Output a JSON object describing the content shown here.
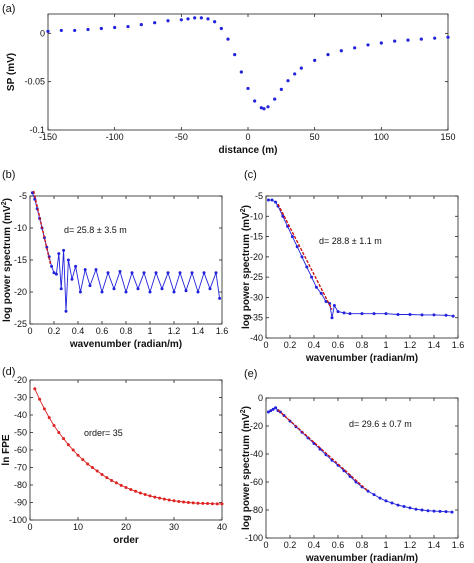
{
  "figure": {
    "background": "#ffffff",
    "point_color": "#2222dd",
    "fit_color": "#cc1111",
    "red_color": "#dd2222"
  },
  "chart_data": [
    {
      "id": "a",
      "panel_label": "(a)",
      "type": "scatter",
      "xlabel": "distance (m)",
      "ylabel": "SP (mV)",
      "xlim": [
        -150,
        150
      ],
      "ylim": [
        -0.1,
        0.02
      ],
      "xticks": [
        -150,
        -100,
        -50,
        0,
        50,
        100,
        150
      ],
      "yticks": [
        -0.1,
        -0.05,
        0
      ],
      "ytick_labels": [
        "-0.1",
        "-0.05",
        "0"
      ],
      "xtick_labels": [
        "-150",
        "-100",
        "-50",
        "0",
        "50",
        "100",
        "150"
      ],
      "series": [
        {
          "color": "#2222dd",
          "marker": "dot",
          "x": [
            -150,
            -140,
            -130,
            -120,
            -110,
            -100,
            -90,
            -80,
            -70,
            -60,
            -50,
            -45,
            -40,
            -35,
            -30,
            -25,
            -20,
            -15,
            -10,
            -5,
            0,
            5,
            10,
            12,
            15,
            20,
            25,
            30,
            35,
            40,
            50,
            60,
            70,
            80,
            90,
            100,
            110,
            120,
            130,
            140,
            150
          ],
          "y": [
            0.002,
            0.003,
            0.003,
            0.004,
            0.005,
            0.006,
            0.007,
            0.009,
            0.011,
            0.013,
            0.014,
            0.015,
            0.016,
            0.016,
            0.015,
            0.012,
            0.005,
            -0.006,
            -0.022,
            -0.04,
            -0.057,
            -0.07,
            -0.077,
            -0.078,
            -0.076,
            -0.068,
            -0.058,
            -0.049,
            -0.042,
            -0.036,
            -0.028,
            -0.022,
            -0.018,
            -0.015,
            -0.012,
            -0.01,
            -0.008,
            -0.007,
            -0.006,
            -0.005,
            -0.004
          ]
        }
      ]
    },
    {
      "id": "b",
      "panel_label": "(b)",
      "type": "line",
      "xlabel": "wavenumber (radian/m)",
      "ylabel": "log power spectrum (mV2)",
      "xlim": [
        0,
        1.6
      ],
      "ylim": [
        -25,
        -5
      ],
      "xticks": [
        0,
        0.2,
        0.4,
        0.6,
        0.8,
        1,
        1.2,
        1.4,
        1.6
      ],
      "xtick_labels": [
        "0",
        "0.2",
        "0.4",
        "0.6",
        "0.8",
        "1",
        "1.2",
        "1.4",
        "1.6"
      ],
      "yticks": [
        -25,
        -20,
        -15,
        -10,
        -5
      ],
      "ytick_labels": [
        "-25",
        "-20",
        "-15",
        "-10",
        "-5"
      ],
      "annotation": "d= 25.8 ± 3.5 m",
      "series": [
        {
          "color": "#2222dd",
          "marker": "dot",
          "x": [
            0.02,
            0.04,
            0.06,
            0.08,
            0.1,
            0.12,
            0.14,
            0.16,
            0.18,
            0.2,
            0.22,
            0.24,
            0.26,
            0.28,
            0.3,
            0.32,
            0.35,
            0.38,
            0.42,
            0.46,
            0.5,
            0.55,
            0.6,
            0.65,
            0.7,
            0.75,
            0.8,
            0.85,
            0.9,
            0.95,
            1.0,
            1.05,
            1.1,
            1.15,
            1.2,
            1.25,
            1.3,
            1.35,
            1.4,
            1.45,
            1.5,
            1.55,
            1.58
          ],
          "y": [
            -4.5,
            -5.5,
            -7,
            -8.5,
            -10,
            -11.5,
            -13,
            -14.5,
            -16,
            -17,
            -17.2,
            -14,
            -19.5,
            -13.5,
            -23,
            -15,
            -18,
            -16,
            -20,
            -16.5,
            -19,
            -16.5,
            -20,
            -17,
            -19.5,
            -16.8,
            -20,
            -17,
            -19.5,
            -17,
            -20,
            -17,
            -19.5,
            -17,
            -20,
            -17,
            -19.8,
            -17,
            -20,
            -17,
            -19.5,
            -17,
            -21
          ]
        },
        {
          "color": "#cc1111",
          "marker": "none",
          "x": [
            0.03,
            0.17
          ],
          "y": [
            -4.2,
            -15.6
          ]
        }
      ]
    },
    {
      "id": "c",
      "panel_label": "(c)",
      "type": "line",
      "xlabel": "wavenumber (radian/m)",
      "ylabel": "log power spectrum (mV2)",
      "xlim": [
        0,
        1.6
      ],
      "ylim": [
        -40,
        -5
      ],
      "xticks": [
        0,
        0.2,
        0.4,
        0.6,
        0.8,
        1,
        1.2,
        1.4,
        1.6
      ],
      "xtick_labels": [
        "0",
        "0.2",
        "0.4",
        "0.6",
        "0.8",
        "1",
        "1.2",
        "1.4",
        "1.6"
      ],
      "yticks": [
        -40,
        -35,
        -30,
        -25,
        -20,
        -15,
        -10,
        -5
      ],
      "ytick_labels": [
        "-40",
        "-35",
        "-30",
        "-25",
        "-20",
        "-15",
        "-10",
        "-5"
      ],
      "annotation": "d= 28.8 ± 1.1 m",
      "series": [
        {
          "color": "#2222dd",
          "marker": "dot",
          "x": [
            0.02,
            0.05,
            0.08,
            0.1,
            0.14,
            0.18,
            0.22,
            0.26,
            0.3,
            0.34,
            0.38,
            0.42,
            0.46,
            0.5,
            0.53,
            0.55,
            0.57,
            0.6,
            0.65,
            0.7,
            0.8,
            0.9,
            1.0,
            1.1,
            1.2,
            1.3,
            1.4,
            1.5,
            1.56
          ],
          "y": [
            -6,
            -6,
            -6.5,
            -7.5,
            -10,
            -12.5,
            -15,
            -17.5,
            -20,
            -22.5,
            -25,
            -27.5,
            -29,
            -31,
            -31.5,
            -35,
            -32,
            -33.5,
            -33.8,
            -34,
            -34,
            -34,
            -34,
            -34.2,
            -34.2,
            -34.3,
            -34.3,
            -34.4,
            -34.6
          ]
        },
        {
          "color": "#cc1111",
          "marker": "none",
          "x": [
            0.1,
            0.55
          ],
          "y": [
            -7,
            -33
          ]
        }
      ]
    },
    {
      "id": "d",
      "panel_label": "(d)",
      "type": "line",
      "xlabel": "order",
      "ylabel": "ln FPE",
      "xlim": [
        0,
        40
      ],
      "ylim": [
        -100,
        -20
      ],
      "xticks": [
        0,
        10,
        20,
        30,
        40
      ],
      "xtick_labels": [
        "0",
        "10",
        "20",
        "30",
        "40"
      ],
      "yticks": [
        -100,
        -90,
        -80,
        -70,
        -60,
        -50,
        -40,
        -30,
        -20
      ],
      "ytick_labels": [
        "-100",
        "-90",
        "-80",
        "-70",
        "-60",
        "-50",
        "-40",
        "-30",
        "-20"
      ],
      "annotation": "order= 35",
      "series": [
        {
          "color": "#dd2222",
          "marker": "dot",
          "x": [
            1,
            2,
            3,
            4,
            5,
            6,
            7,
            8,
            9,
            10,
            11,
            12,
            13,
            14,
            15,
            16,
            17,
            18,
            19,
            20,
            21,
            22,
            23,
            24,
            25,
            26,
            27,
            28,
            29,
            30,
            31,
            32,
            33,
            34,
            35,
            36,
            37,
            38,
            39,
            40
          ],
          "y": [
            -25,
            -31,
            -36.5,
            -41.5,
            -46,
            -50,
            -53.5,
            -57,
            -60,
            -63,
            -65.5,
            -68,
            -70,
            -72,
            -74,
            -75.8,
            -77.4,
            -78.8,
            -80.2,
            -81.4,
            -82.6,
            -83.6,
            -84.6,
            -85.4,
            -86.2,
            -86.9,
            -87.5,
            -88.1,
            -88.6,
            -89,
            -89.4,
            -89.7,
            -90,
            -90.2,
            -90.4,
            -90.5,
            -90.6,
            -90.7,
            -90.8,
            -90.8
          ]
        }
      ]
    },
    {
      "id": "e",
      "panel_label": "(e)",
      "type": "line",
      "xlabel": "wavenumber (radian/m)",
      "ylabel": "log power spectrum (mV2)",
      "xlim": [
        0,
        1.6
      ],
      "ylim": [
        -100,
        0
      ],
      "xticks": [
        0,
        0.2,
        0.4,
        0.6,
        0.8,
        1,
        1.2,
        1.4,
        1.6
      ],
      "xtick_labels": [
        "0",
        "0.2",
        "0.4",
        "0.6",
        "0.8",
        "1",
        "1.2",
        "1.4",
        "1.6"
      ],
      "yticks": [
        -100,
        -80,
        -60,
        -40,
        -20,
        0
      ],
      "ytick_labels": [
        "-100",
        "-80",
        "-60",
        "-40",
        "-20",
        "0"
      ],
      "annotation": "d= 29.6 ± 0.7 m",
      "series": [
        {
          "color": "#2222dd",
          "marker": "dot",
          "x": [
            0.02,
            0.04,
            0.06,
            0.08,
            0.1,
            0.12,
            0.15,
            0.2,
            0.25,
            0.3,
            0.35,
            0.4,
            0.45,
            0.5,
            0.55,
            0.6,
            0.65,
            0.7,
            0.75,
            0.8,
            0.85,
            0.9,
            0.95,
            1.0,
            1.05,
            1.1,
            1.15,
            1.2,
            1.25,
            1.3,
            1.35,
            1.4,
            1.45,
            1.5,
            1.55
          ],
          "y": [
            -10,
            -9,
            -8,
            -7,
            -9,
            -10,
            -12.5,
            -16.5,
            -20.5,
            -24.5,
            -28.5,
            -32.5,
            -36.5,
            -40.5,
            -44.5,
            -48,
            -52,
            -56,
            -60,
            -63.5,
            -66.5,
            -69,
            -71.5,
            -73.5,
            -75,
            -76.5,
            -77.5,
            -78.5,
            -79.5,
            -80,
            -80.5,
            -80.8,
            -81,
            -81.2,
            -81.5
          ]
        },
        {
          "color": "#cc1111",
          "marker": "none",
          "x": [
            0.1,
            0.85
          ],
          "y": [
            -8.5,
            -66.5
          ]
        }
      ]
    }
  ]
}
